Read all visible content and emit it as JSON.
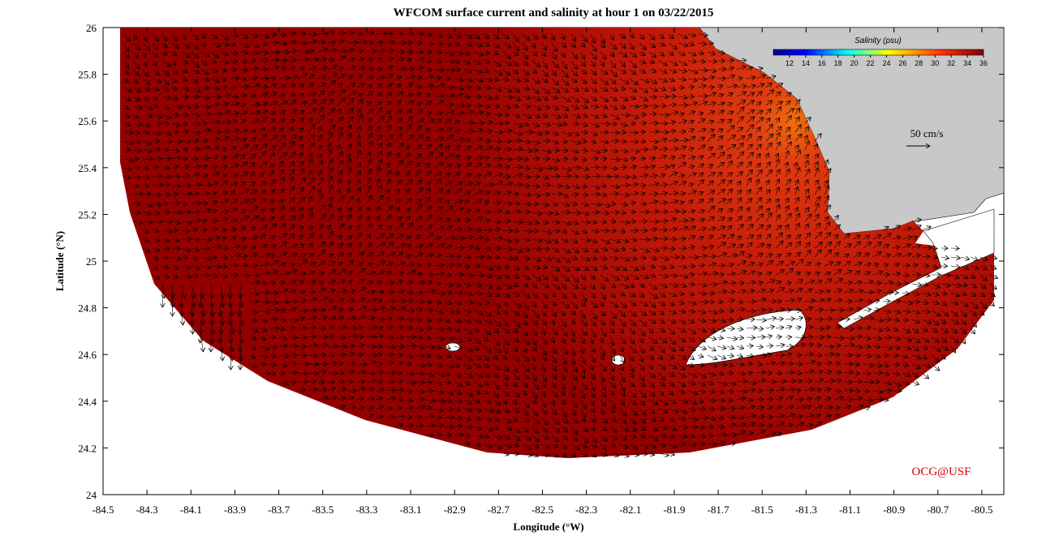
{
  "chart_data": {
    "type": "map",
    "title": "WFCOM surface current and salinity at hour 1 on 03/22/2015",
    "xlabel": "Longitude (°W)",
    "ylabel": "Latitude (°N)",
    "xlim": [
      -84.5,
      -80.4
    ],
    "ylim": [
      24,
      26
    ],
    "xticks": [
      -84.5,
      -84.3,
      -84.1,
      -83.9,
      -83.7,
      -83.5,
      -83.3,
      -83.1,
      -82.9,
      -82.7,
      -82.5,
      -82.3,
      -82.1,
      -81.9,
      -81.7,
      -81.5,
      -81.3,
      -81.1,
      -80.9,
      -80.7,
      -80.5
    ],
    "yticks": [
      24,
      24.2,
      24.4,
      24.6,
      24.8,
      25,
      25.2,
      25.4,
      25.6,
      25.8,
      26
    ],
    "colorbar": {
      "title": "Salinity (psu)",
      "clim": [
        10,
        36
      ],
      "ticks": [
        12,
        14,
        16,
        18,
        20,
        22,
        24,
        26,
        28,
        30,
        32,
        34,
        36
      ]
    },
    "scale_label": "50 cm/s",
    "credit": "OCG@USF"
  }
}
